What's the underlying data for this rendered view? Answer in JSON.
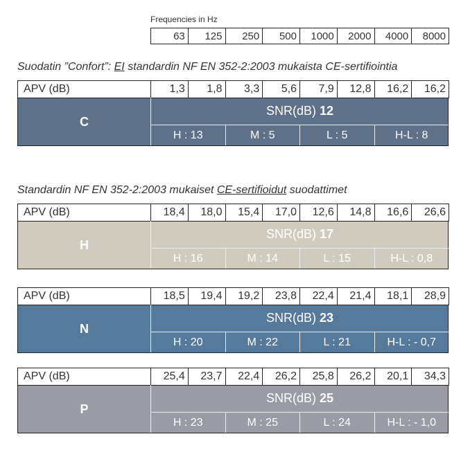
{
  "frequencies": {
    "label": "Frequencies in Hz",
    "values": [
      "63",
      "125",
      "250",
      "500",
      "1000",
      "2000",
      "4000",
      "8000"
    ]
  },
  "groups": [
    {
      "caption": [
        "Suodatin ”Confort”: ",
        "EI",
        " standardin NF EN 352-2:2003 mukaista CE-sertifiointia"
      ],
      "tables": [
        {
          "row_label": "APV (dB)",
          "apv": [
            "1,3",
            "1,8",
            "3,3",
            "5,6",
            "7,9",
            "12,8",
            "16,2",
            "16,2"
          ],
          "class": "C",
          "snr_label": "SNR(dB)",
          "snr": "12",
          "ratings": [
            "H : 13",
            "M : 5",
            "L : 5",
            "H-L : 8"
          ]
        }
      ]
    },
    {
      "caption": [
        "Standardin NF EN 352-2:2003 mukaiset ",
        "CE-sertifioidut",
        " suodattimet"
      ],
      "tables": [
        {
          "row_label": "APV (dB)",
          "apv": [
            "18,4",
            "18,0",
            "15,4",
            "17,0",
            "12,6",
            "14,8",
            "16,6",
            "26,6"
          ],
          "class": "H",
          "snr_label": "SNR(dB)",
          "snr": "17",
          "ratings": [
            "H : 16",
            "M : 14",
            "L : 15",
            "H-L : 0,8"
          ]
        },
        {
          "row_label": "APV (dB)",
          "apv": [
            "18,5",
            "19,4",
            "19,2",
            "23,8",
            "22,4",
            "21,4",
            "18,1",
            "28,9"
          ],
          "class": "N",
          "snr_label": "SNR(dB)",
          "snr": "23",
          "ratings": [
            "H : 20",
            "M : 22",
            "L : 21",
            "H-L : - 0,7"
          ]
        },
        {
          "row_label": "APV (dB)",
          "apv": [
            "25,4",
            "23,7",
            "22,4",
            "26,2",
            "25,8",
            "26,2",
            "20,1",
            "34,3"
          ],
          "class": "P",
          "snr_label": "SNR(dB)",
          "snr": "25",
          "ratings": [
            "H : 23",
            "M : 25",
            "L : 24",
            "H-L : - 1,0"
          ]
        }
      ]
    }
  ]
}
